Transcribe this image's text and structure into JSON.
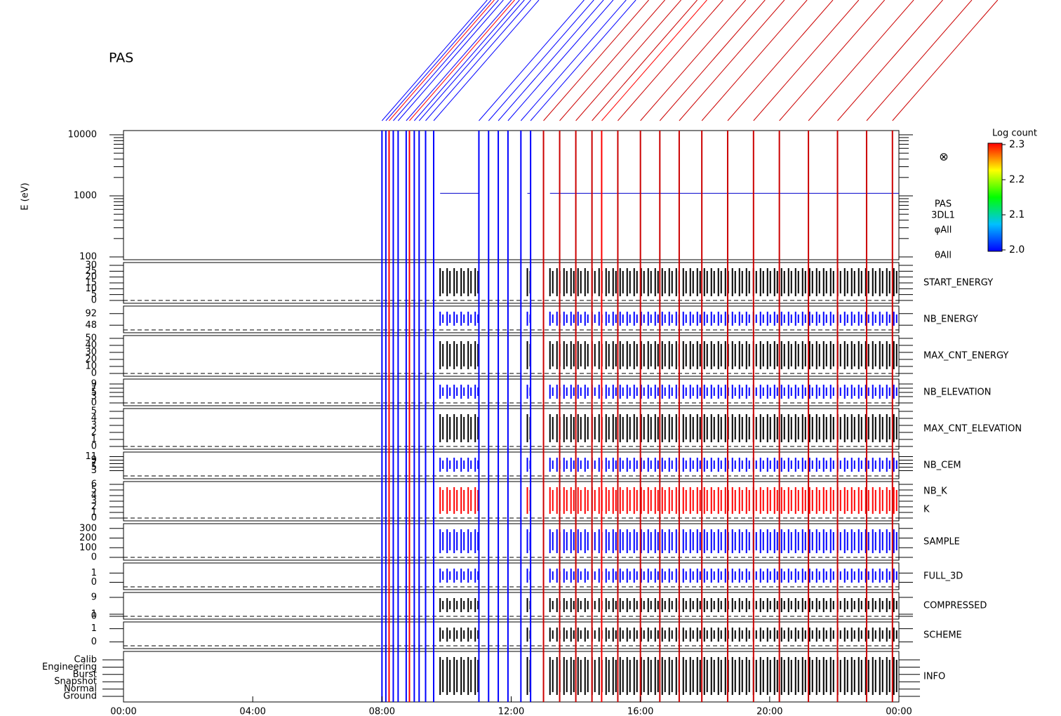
{
  "chart_data": {
    "type": "multi-panel",
    "title": "PAS",
    "xlim": [
      0,
      24
    ],
    "xticks": [
      {
        "value": 0,
        "label": "00:00"
      },
      {
        "value": 4,
        "label": "04:00"
      },
      {
        "value": 8,
        "label": "08:00"
      },
      {
        "value": 12,
        "label": "12:00"
      },
      {
        "value": 16,
        "label": "16:00"
      },
      {
        "value": 20,
        "label": "20:00"
      },
      {
        "value": 24,
        "label": "00:00"
      }
    ],
    "spectrogram": {
      "ylabel": "E (eV)",
      "log": true,
      "ylim": [
        100,
        10000
      ],
      "yticks": [
        100,
        1000,
        10000
      ],
      "energy_line": 1100,
      "labels": [
        "PAS",
        "3DL1",
        "φAll",
        "θAll"
      ]
    },
    "colorbar": {
      "title": "Log count",
      "ylim": [
        2.0,
        2.3
      ],
      "ticks": [
        {
          "value": 2.0,
          "label": "2.0"
        },
        2.1,
        2.2,
        2.3
      ]
    },
    "active_intervals": [
      [
        9.8,
        11.0
      ],
      [
        12.5,
        12.6
      ],
      [
        13.2,
        24.0
      ]
    ],
    "events": [
      {
        "x": 8.0,
        "color": "#0000ff"
      },
      {
        "x": 8.12,
        "color": "#0000ff"
      },
      {
        "x": 8.22,
        "color": "#ff0000"
      },
      {
        "x": 8.35,
        "color": "#0000ff"
      },
      {
        "x": 8.5,
        "color": "#0000ff"
      },
      {
        "x": 8.75,
        "color": "#0000ff"
      },
      {
        "x": 8.85,
        "color": "#ff0000"
      },
      {
        "x": 9.0,
        "color": "#0000ff"
      },
      {
        "x": 9.15,
        "color": "#0000ff"
      },
      {
        "x": 9.35,
        "color": "#0000ff"
      },
      {
        "x": 9.6,
        "color": "#0000ff"
      },
      {
        "x": 11.0,
        "color": "#0000ff"
      },
      {
        "x": 11.3,
        "color": "#0000ff"
      },
      {
        "x": 11.6,
        "color": "#0000ff"
      },
      {
        "x": 11.9,
        "color": "#0000ff"
      },
      {
        "x": 12.3,
        "color": "#0000ff"
      },
      {
        "x": 12.6,
        "color": "#0000ff"
      },
      {
        "x": 13.0,
        "color": "#cc0000"
      },
      {
        "x": 13.5,
        "color": "#cc0000"
      },
      {
        "x": 14.0,
        "color": "#cc0000"
      },
      {
        "x": 14.5,
        "color": "#cc0000"
      },
      {
        "x": 14.8,
        "color": "#ff0000"
      },
      {
        "x": 15.3,
        "color": "#cc0000"
      },
      {
        "x": 16.0,
        "color": "#cc0000"
      },
      {
        "x": 16.6,
        "color": "#cc0000"
      },
      {
        "x": 17.2,
        "color": "#cc0000"
      },
      {
        "x": 17.9,
        "color": "#cc0000"
      },
      {
        "x": 18.7,
        "color": "#cc0000"
      },
      {
        "x": 19.5,
        "color": "#cc0000"
      },
      {
        "x": 20.3,
        "color": "#cc0000"
      },
      {
        "x": 21.2,
        "color": "#cc0000"
      },
      {
        "x": 22.1,
        "color": "#cc0000"
      },
      {
        "x": 23.0,
        "color": "#cc0000"
      },
      {
        "x": 23.8,
        "color": "#cc0000"
      }
    ],
    "panels": [
      {
        "name": "START_ENERGY",
        "color": "#000000",
        "ylim": [
          0,
          30
        ],
        "yticks": [
          0,
          5,
          10,
          15,
          20,
          25,
          30
        ]
      },
      {
        "name": "NB_ENERGY",
        "color": "#0000ff",
        "ylim": [
          30,
          110
        ],
        "yticks": [
          48,
          92
        ]
      },
      {
        "name": "MAX_CNT_ENERGY",
        "color": "#000000",
        "ylim": [
          0,
          50
        ],
        "yticks": [
          0,
          10,
          20,
          30,
          40,
          50
        ]
      },
      {
        "name": "NB_ELEVATION",
        "color": "#0000ff",
        "ylim": [
          0,
          10
        ],
        "yticks": [
          0,
          3,
          5,
          7,
          9
        ]
      },
      {
        "name": "MAX_CNT_ELEVATION",
        "color": "#000000",
        "ylim": [
          0,
          5
        ],
        "yticks": [
          0,
          1,
          2,
          3,
          4,
          5
        ]
      },
      {
        "name": "NB_CEM",
        "color": "#0000ff",
        "ylim": [
          0,
          12
        ],
        "yticks": [
          3,
          5,
          7,
          9,
          11
        ]
      },
      {
        "name": "NB_K",
        "name2": "K",
        "color": "#ff0000",
        "color2": "#0000ff",
        "ylim": [
          0,
          6
        ],
        "yticks": [
          0,
          1,
          2,
          3,
          4,
          5,
          6
        ]
      },
      {
        "name": "SAMPLE",
        "color": "#0000ff",
        "ylim": [
          0,
          320
        ],
        "yticks": [
          0,
          100,
          200,
          300
        ]
      },
      {
        "name": "FULL_3D",
        "color": "#0000ff",
        "ylim": [
          -0.5,
          1.8
        ],
        "yticks": [
          0,
          1
        ]
      },
      {
        "name": "COMPRESSED",
        "color": "#000000",
        "ylim": [
          0,
          10
        ],
        "yticks": [
          0,
          1,
          9
        ]
      },
      {
        "name": "SCHEME",
        "color": "#000000",
        "ylim": [
          -0.3,
          1.3
        ],
        "yticks": [
          0,
          1
        ]
      },
      {
        "name": "INFO",
        "color": "#000000",
        "categories": [
          "Calib",
          "Engineering",
          "Burst",
          "Snapshot",
          "Normal",
          "Ground"
        ]
      }
    ]
  }
}
